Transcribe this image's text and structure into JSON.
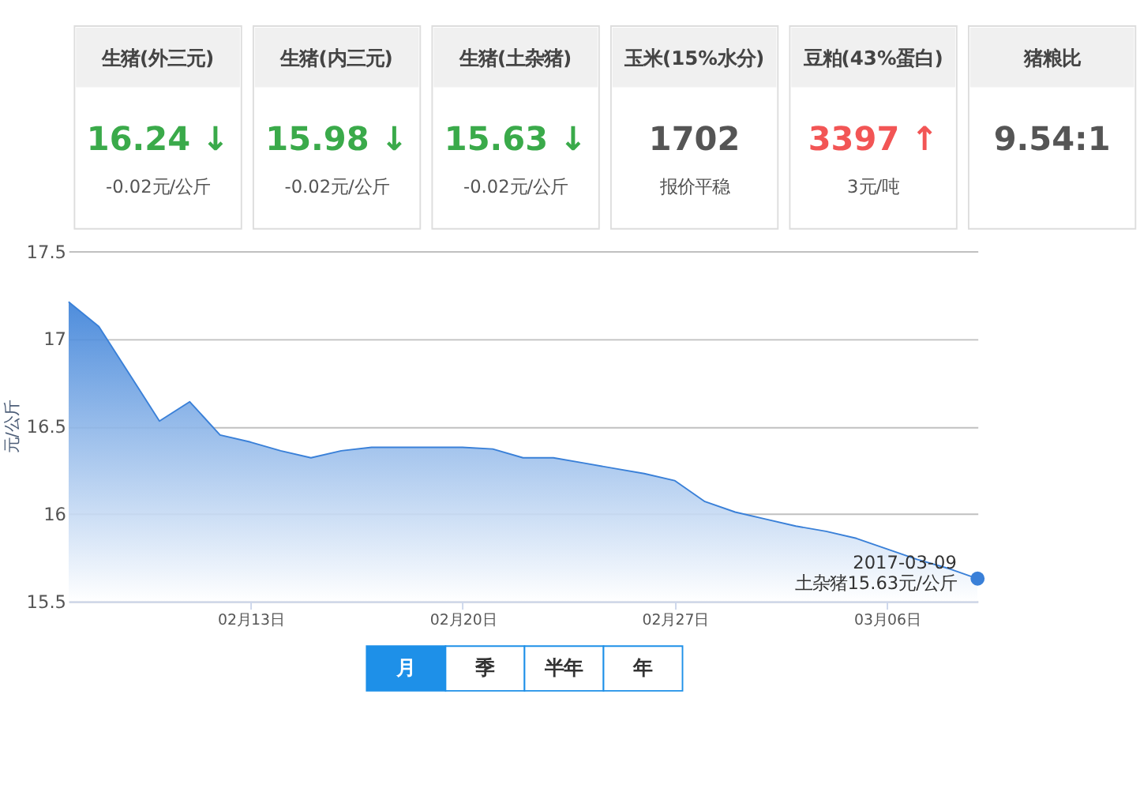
{
  "chart_data": [
    {
      "type": "other",
      "colors": [
        "#3aaa4a",
        "#3aaa4a",
        "#3aaa4a",
        "#555555",
        "#f25555",
        "#555555"
      ],
      "annotations": [
        "生猪(外三元)",
        "生猪(内三元)",
        "生猪(土杂猪)",
        "玉米(15%水分)",
        "豆粕(43%蛋白)",
        "猪粮比",
        "16.24 ↓",
        "15.98 ↓",
        "15.63 ↓",
        "1702",
        "3397 ↑",
        "9.54:1",
        "-0.02元/公斤",
        "-0.02元/公斤",
        "-0.02元/公斤",
        "报价平稳",
        "3元/吨"
      ]
    },
    {
      "type": "area",
      "ylabel": "元/公斤",
      "grid": "y",
      "x": [
        "2017-02-07",
        "2017-02-08",
        "2017-02-09",
        "2017-02-10",
        "2017-02-11",
        "2017-02-12",
        "2017-02-13",
        "2017-02-14",
        "2017-02-15",
        "2017-02-16",
        "2017-02-17",
        "2017-02-18",
        "2017-02-19",
        "2017-02-20",
        "2017-02-21",
        "2017-02-22",
        "2017-02-23",
        "2017-02-24",
        "2017-02-25",
        "2017-02-26",
        "2017-02-27",
        "2017-02-28",
        "2017-03-01",
        "2017-03-02",
        "2017-03-03",
        "2017-03-04",
        "2017-03-05",
        "2017-03-06",
        "2017-03-07",
        "2017-03-08",
        "2017-03-09"
      ],
      "series": [
        {
          "color": "#3a80d8",
          "values": [
            17.21,
            17.07,
            16.8,
            16.53,
            16.64,
            16.45,
            16.41,
            16.36,
            16.32,
            16.36,
            16.38,
            16.38,
            16.38,
            16.38,
            16.37,
            16.32,
            16.32,
            16.29,
            16.26,
            16.23,
            16.19,
            16.07,
            16.01,
            15.97,
            15.93,
            15.9,
            15.86,
            15.8,
            15.74,
            15.69,
            15.63
          ]
        }
      ],
      "xlim": [
        "2017-02-07",
        "2017-03-09"
      ],
      "xticks": [
        {
          "value": "2017-02-13",
          "label": "02月13日"
        },
        {
          "value": "2017-02-20",
          "label": "02月20日"
        },
        {
          "value": "2017-02-27",
          "label": "02月27日"
        },
        {
          "value": "2017-03-06",
          "label": "03月06日"
        }
      ],
      "ylim": [
        15.5,
        17.5
      ],
      "yticks": [
        15.5,
        16,
        16.5,
        17,
        17.5
      ],
      "annotations": [
        {
          "text": "2017-03-09\n土杂猪15.63元/公斤",
          "x": "2017-03-09",
          "y": 15.63
        },
        "月",
        "季",
        "半年",
        "年"
      ]
    }
  ]
}
